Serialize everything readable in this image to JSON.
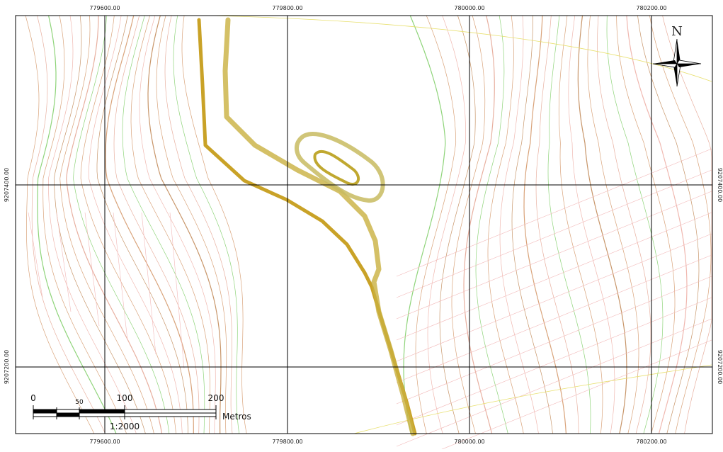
{
  "map": {
    "grid_x_top": [
      "779600.00",
      "779800.00",
      "780000.00",
      "780200.00"
    ],
    "grid_x_bottom": [
      "779600.00",
      "779800.00",
      "780000.00",
      "780200.00"
    ],
    "grid_y_left": [
      "9207400.00",
      "9207200.00"
    ],
    "grid_y_right": [
      "9207400.00",
      "9207200.00"
    ],
    "north": "N",
    "scale_bar": {
      "labels": [
        "0",
        "50",
        "100",
        "200"
      ],
      "unit": "Metros",
      "ratio": "1:2000"
    }
  }
}
